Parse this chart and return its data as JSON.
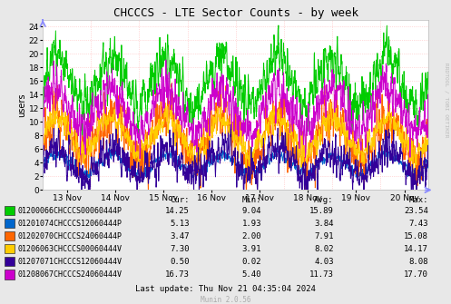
{
  "title": "CHCCCS - LTE Sector Counts - by week",
  "ylabel": "users",
  "ylim": [
    0,
    25
  ],
  "yticks": [
    0,
    2,
    4,
    6,
    8,
    10,
    12,
    14,
    16,
    18,
    20,
    22,
    24
  ],
  "bg_color": "#e8e8e8",
  "plot_bg_color": "#ffffff",
  "x_ticks_labels": [
    "13 Nov",
    "14 Nov",
    "15 Nov",
    "16 Nov",
    "17 Nov",
    "18 Nov",
    "19 Nov",
    "20 Nov"
  ],
  "series": [
    {
      "label": "01200066CHCCCS00060444P",
      "color": "#00cc00",
      "cur": 14.25,
      "min": 9.04,
      "avg": 15.89,
      "max": 23.54
    },
    {
      "label": "01201074CHCCCS12060444P",
      "color": "#0066cc",
      "cur": 5.13,
      "min": 1.93,
      "avg": 3.84,
      "max": 7.43
    },
    {
      "label": "01202070CHCCCS24060444P",
      "color": "#ff6600",
      "cur": 3.47,
      "min": 2.0,
      "avg": 7.91,
      "max": 15.08
    },
    {
      "label": "01206063CHCCCS00060444V",
      "color": "#ffcc00",
      "cur": 7.3,
      "min": 3.91,
      "avg": 8.02,
      "max": 14.17
    },
    {
      "label": "01207071CHCCCS12060444V",
      "color": "#330099",
      "cur": 0.5,
      "min": 0.02,
      "avg": 4.03,
      "max": 8.08
    },
    {
      "label": "01208067CHCCCS24060444V",
      "color": "#cc00cc",
      "cur": 16.73,
      "min": 5.4,
      "avg": 11.73,
      "max": 17.7
    }
  ],
  "last_update": "Last update: Thu Nov 21 04:35:04 2024",
  "munin_version": "Munin 2.0.56",
  "rrdtool_label": "RRDTOOL / TOBI OETIKER",
  "arrow_color": "#8888ff"
}
